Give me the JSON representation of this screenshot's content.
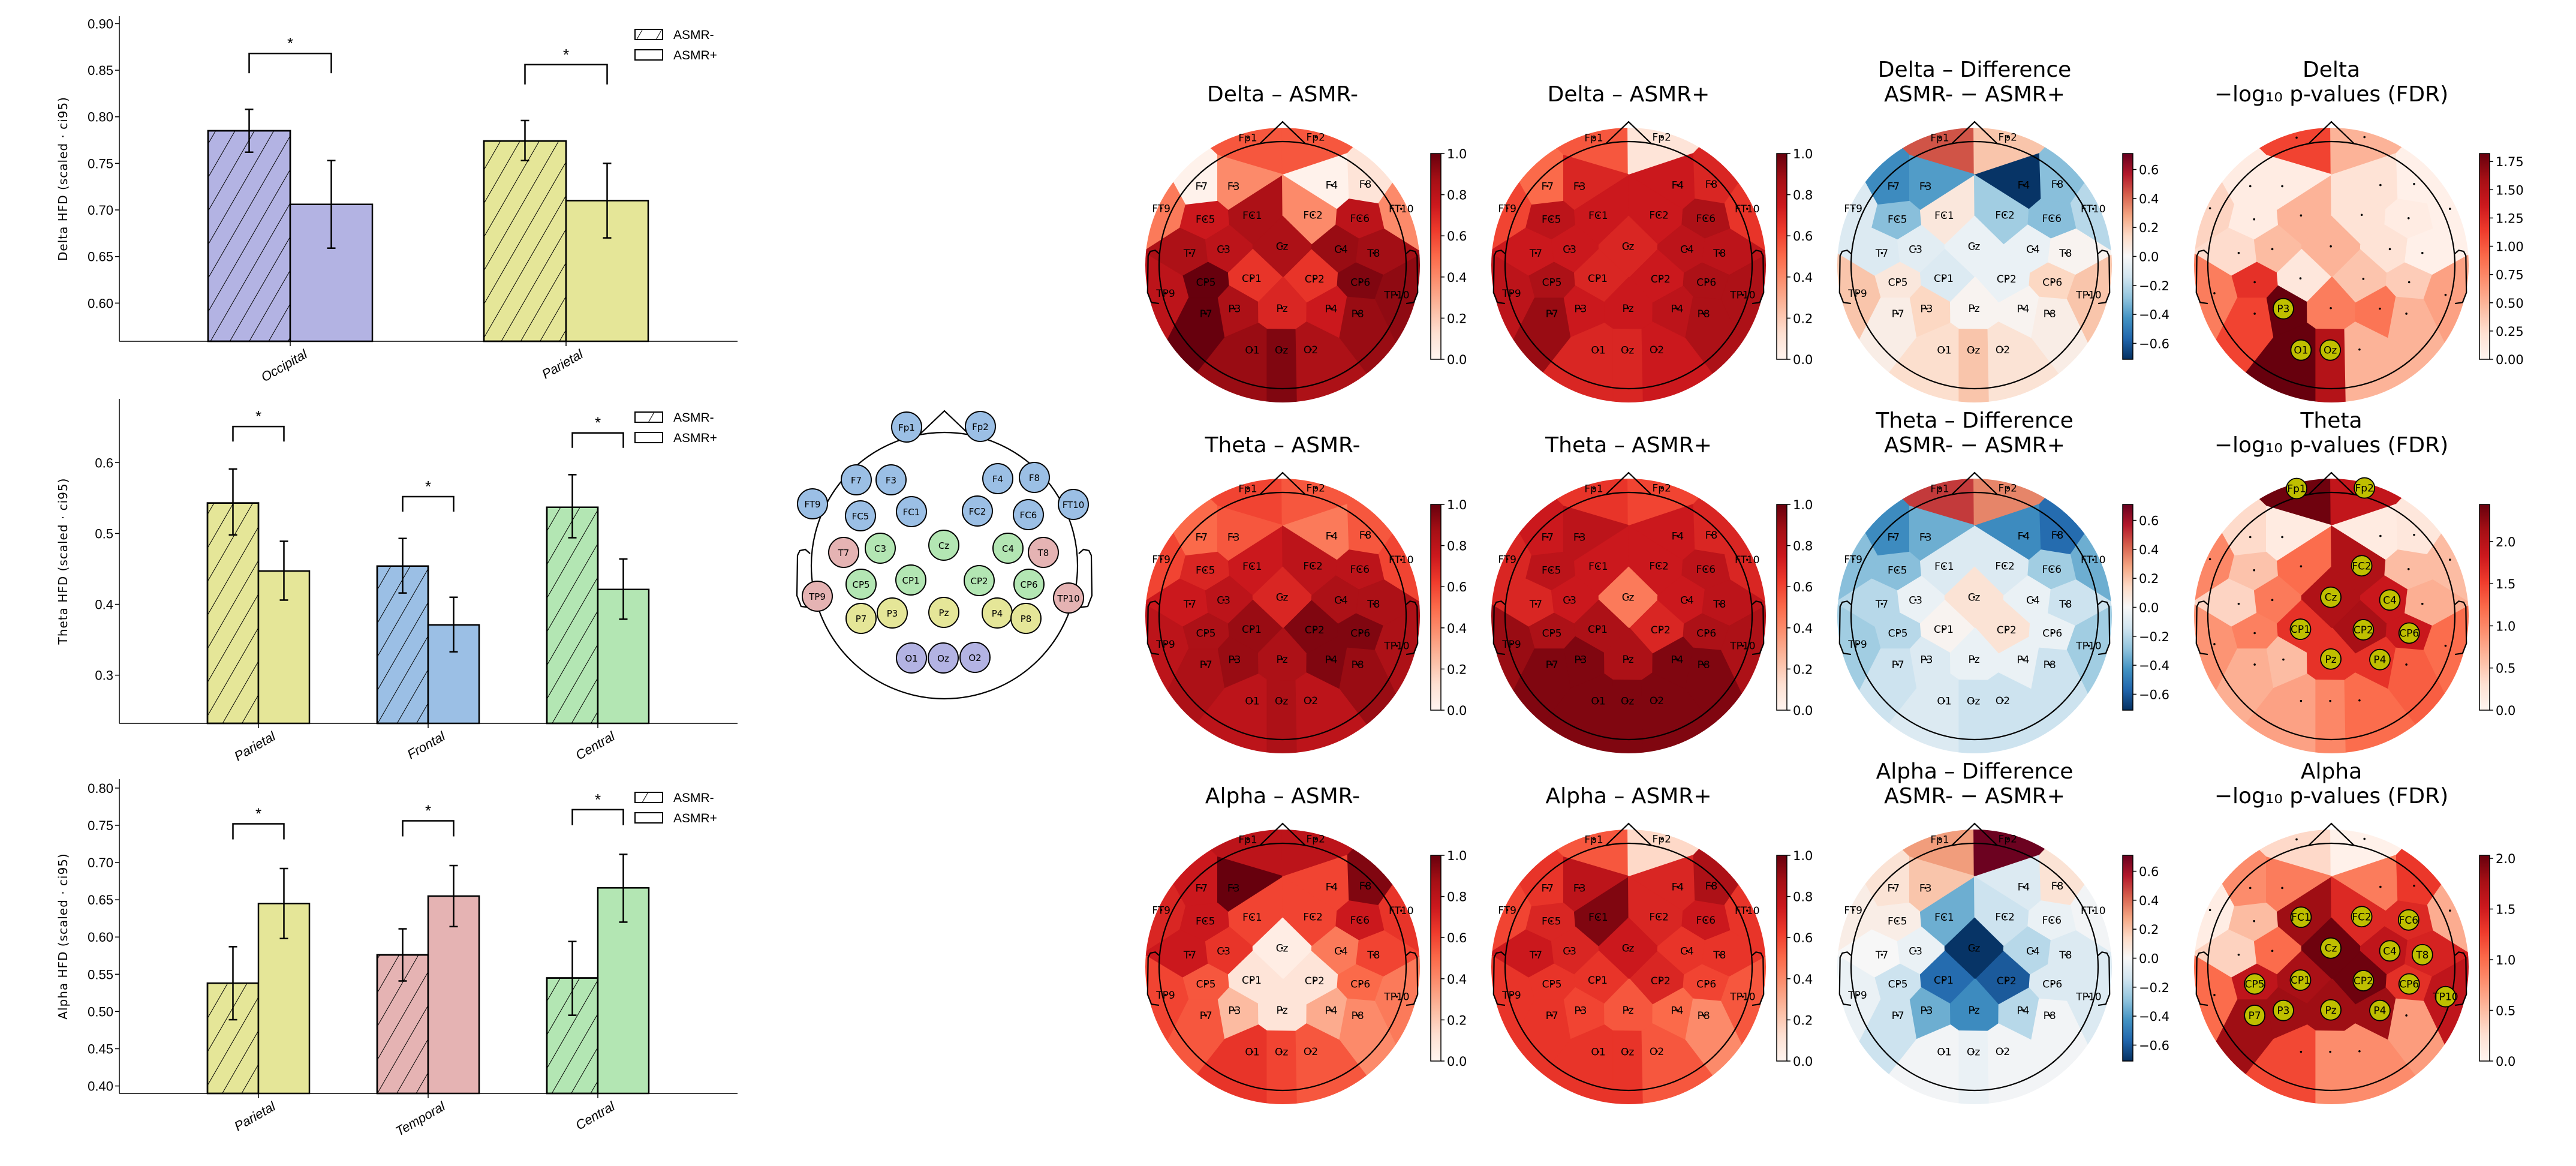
{
  "electrodes": [
    "Fp1",
    "Fp2",
    "F7",
    "F3",
    "F4",
    "F8",
    "FT9",
    "FT10",
    "FC5",
    "FC1",
    "FC2",
    "FC6",
    "T7",
    "C3",
    "Cz",
    "C4",
    "T8",
    "CP5",
    "CP1",
    "CP2",
    "CP6",
    "TP9",
    "TP10",
    "P7",
    "P3",
    "Pz",
    "P4",
    "P8",
    "O1",
    "Oz",
    "O2"
  ],
  "montage": {
    "groups": [
      {
        "region": "frontal",
        "color": "#9bbfe5",
        "electrodes": [
          "Fp1",
          "Fp2",
          "F7",
          "F3",
          "F4",
          "F8",
          "FT9",
          "FT10",
          "FC5",
          "FC1",
          "FC2",
          "FC6"
        ]
      },
      {
        "region": "central",
        "color": "#b3e6b3",
        "electrodes": [
          "C3",
          "Cz",
          "C4",
          "CP5",
          "CP1",
          "CP2",
          "CP6"
        ]
      },
      {
        "region": "temporal",
        "color": "#e5b3b3",
        "electrodes": [
          "T7",
          "T8",
          "TP9",
          "TP10"
        ]
      },
      {
        "region": "parietal",
        "color": "#e5e698",
        "electrodes": [
          "P7",
          "P3",
          "Pz",
          "P4",
          "P8"
        ]
      },
      {
        "region": "occipital",
        "color": "#b3b3e3",
        "electrodes": [
          "O1",
          "Oz",
          "O2"
        ]
      }
    ]
  },
  "chart_data": [
    {
      "type": "bar",
      "ylabel": "Delta HFD (scaled · ci95)",
      "categories": [
        "Occipital",
        "Parietal"
      ],
      "colors": [
        "#b3b3e3",
        "#e5e698"
      ],
      "series": [
        {
          "name": "ASMR-",
          "hatch": true,
          "values": [
            0.785,
            0.774
          ],
          "ci_low": [
            0.762,
            0.753
          ],
          "ci_high": [
            0.808,
            0.796
          ]
        },
        {
          "name": "ASMR+",
          "hatch": false,
          "values": [
            0.706,
            0.71
          ],
          "ci_low": [
            0.659,
            0.67
          ],
          "ci_high": [
            0.753,
            0.75
          ]
        }
      ],
      "significance": [
        {
          "category": "Occipital",
          "y": 0.868,
          "label": "*"
        },
        {
          "category": "Parietal",
          "y": 0.856,
          "label": "*"
        }
      ],
      "yticks": [
        "0.60",
        "0.65",
        "0.70",
        "0.75",
        "0.80",
        "0.85",
        "0.90"
      ],
      "ylim": [
        0.559,
        0.908
      ],
      "legend": "top-right"
    },
    {
      "type": "bar",
      "ylabel": "Theta HFD (scaled · ci95)",
      "categories": [
        "Parietal",
        "Frontal",
        "Central"
      ],
      "colors": [
        "#e5e698",
        "#9bbfe5",
        "#b3e6b3"
      ],
      "series": [
        {
          "name": "ASMR-",
          "hatch": true,
          "values": [
            0.543,
            0.454,
            0.537
          ],
          "ci_low": [
            0.498,
            0.416,
            0.494
          ],
          "ci_high": [
            0.591,
            0.493,
            0.583
          ]
        },
        {
          "name": "ASMR+",
          "hatch": false,
          "values": [
            0.447,
            0.371,
            0.421
          ],
          "ci_low": [
            0.406,
            0.333,
            0.379
          ],
          "ci_high": [
            0.489,
            0.41,
            0.464
          ]
        }
      ],
      "significance": [
        {
          "category": "Parietal",
          "y": 0.651,
          "label": "*"
        },
        {
          "category": "Frontal",
          "y": 0.552,
          "label": "*"
        },
        {
          "category": "Central",
          "y": 0.642,
          "label": "*"
        }
      ],
      "yticks": [
        "0.3",
        "0.4",
        "0.5",
        "0.6"
      ],
      "ylim": [
        0.232,
        0.69
      ],
      "legend": "top-right"
    },
    {
      "type": "bar",
      "ylabel": "Alpha HFD (scaled · ci95)",
      "categories": [
        "Parietal",
        "Temporal",
        "Central"
      ],
      "colors": [
        "#e5e698",
        "#e5b3b3",
        "#b3e6b3"
      ],
      "series": [
        {
          "name": "ASMR-",
          "hatch": true,
          "values": [
            0.538,
            0.576,
            0.545
          ],
          "ci_low": [
            0.489,
            0.541,
            0.495
          ],
          "ci_high": [
            0.587,
            0.611,
            0.594
          ]
        },
        {
          "name": "ASMR+",
          "hatch": false,
          "values": [
            0.645,
            0.655,
            0.666
          ],
          "ci_low": [
            0.598,
            0.614,
            0.62
          ],
          "ci_high": [
            0.692,
            0.696,
            0.711
          ]
        }
      ],
      "significance": [
        {
          "category": "Parietal",
          "y": 0.752,
          "label": "*"
        },
        {
          "category": "Temporal",
          "y": 0.756,
          "label": "*"
        },
        {
          "category": "Central",
          "y": 0.771,
          "label": "*"
        }
      ],
      "yticks": [
        "0.40",
        "0.45",
        "0.50",
        "0.55",
        "0.60",
        "0.65",
        "0.70",
        "0.75",
        "0.80"
      ],
      "ylim": [
        0.39,
        0.812
      ],
      "legend": "top-right"
    },
    {
      "type": "heatmap",
      "title": [
        "Delta – ASMR-"
      ],
      "cmap": "Reds",
      "vmin": 0,
      "vmax": 1,
      "show_labels": true,
      "cbar_ticks": [
        "0.0",
        "0.2",
        "0.4",
        "0.6",
        "0.8",
        "1.0"
      ],
      "values": [
        0.55,
        0.55,
        0.02,
        0.4,
        0.02,
        0.1,
        0.45,
        0.4,
        0.75,
        0.85,
        0.4,
        0.8,
        0.85,
        0.8,
        0.85,
        0.9,
        0.88,
        1.0,
        0.65,
        0.65,
        0.95,
        0.8,
        0.92,
        1.0,
        0.85,
        0.7,
        0.75,
        0.9,
        0.9,
        0.95,
        0.85
      ]
    },
    {
      "type": "heatmap",
      "title": [
        "Delta – ASMR+"
      ],
      "cmap": "Reds",
      "vmin": 0,
      "vmax": 1,
      "show_labels": true,
      "cbar_ticks": [
        "0.0",
        "0.2",
        "0.4",
        "0.6",
        "0.8",
        "1.0"
      ],
      "values": [
        0.55,
        0.1,
        0.5,
        0.7,
        0.75,
        0.7,
        0.6,
        0.65,
        0.8,
        0.75,
        0.75,
        0.85,
        0.75,
        0.75,
        0.7,
        0.8,
        0.8,
        0.85,
        0.7,
        0.75,
        0.85,
        0.8,
        0.85,
        0.9,
        0.75,
        0.75,
        0.8,
        0.85,
        0.7,
        0.7,
        0.75
      ]
    },
    {
      "type": "heatmap",
      "title": [
        "Delta – Difference",
        "ASMR- − ASMR+"
      ],
      "cmap": "RdBu_r",
      "vmin": -0.71,
      "vmax": 0.71,
      "show_labels": true,
      "cbar_ticks": [
        "−0.6",
        "−0.4",
        "−0.2",
        "0.0",
        "0.2",
        "0.4",
        "0.6"
      ],
      "values": [
        0.45,
        0.2,
        -0.45,
        -0.4,
        -0.7,
        -0.3,
        -0.1,
        -0.2,
        -0.3,
        0.08,
        -0.25,
        -0.3,
        -0.1,
        -0.08,
        -0.05,
        -0.05,
        0.02,
        0.08,
        -0.1,
        -0.05,
        0.15,
        0.2,
        0.2,
        0.05,
        0.15,
        0.02,
        0.02,
        0.05,
        0.12,
        0.2,
        0.1
      ]
    },
    {
      "type": "heatmap",
      "title": [
        "Delta",
        "−log₁₀ p-values (FDR)"
      ],
      "cmap": "Reds",
      "vmin": 0,
      "vmax": 1.82,
      "show_labels": false,
      "significant": [
        "P3",
        "O1",
        "Oz"
      ],
      "cbar_ticks": [
        "0.00",
        "0.25",
        "0.50",
        "0.75",
        "1.00",
        "1.25",
        "1.50",
        "1.75"
      ],
      "values": [
        1.1,
        0.5,
        0.1,
        0.1,
        0.2,
        0.05,
        0.3,
        0.05,
        0.1,
        0.5,
        0.2,
        0.1,
        0.25,
        0.45,
        0.5,
        0.2,
        0.05,
        1.2,
        0.15,
        0.4,
        0.35,
        0.8,
        0.6,
        1.1,
        1.82,
        0.8,
        0.85,
        0.5,
        1.82,
        1.5,
        0.5
      ]
    },
    {
      "type": "heatmap",
      "title": [
        "Theta – ASMR-"
      ],
      "cmap": "Reds",
      "vmin": 0,
      "vmax": 1,
      "show_labels": true,
      "cbar_ticks": [
        "0.0",
        "0.2",
        "0.4",
        "0.6",
        "0.8",
        "1.0"
      ],
      "values": [
        0.6,
        0.55,
        0.5,
        0.55,
        0.45,
        0.55,
        0.6,
        0.6,
        0.7,
        0.75,
        0.8,
        0.8,
        0.75,
        0.8,
        0.7,
        0.85,
        0.85,
        0.85,
        0.9,
        0.95,
        0.95,
        0.8,
        0.85,
        0.85,
        0.9,
        0.85,
        0.95,
        0.9,
        0.8,
        0.85,
        0.8
      ]
    },
    {
      "type": "heatmap",
      "title": [
        "Theta – ASMR+"
      ],
      "cmap": "Reds",
      "vmin": 0,
      "vmax": 1,
      "show_labels": true,
      "cbar_ticks": [
        "0.0",
        "0.2",
        "0.4",
        "0.6",
        "0.8",
        "1.0"
      ],
      "values": [
        0.65,
        0.6,
        0.75,
        0.8,
        0.75,
        0.7,
        0.7,
        0.7,
        0.8,
        0.75,
        0.75,
        0.8,
        0.7,
        0.75,
        0.45,
        0.75,
        0.8,
        0.85,
        0.85,
        0.7,
        0.85,
        0.9,
        0.85,
        0.95,
        0.95,
        0.85,
        0.95,
        0.95,
        0.95,
        0.95,
        0.95
      ]
    },
    {
      "type": "heatmap",
      "title": [
        "Theta – Difference",
        "ASMR- − ASMR+"
      ],
      "cmap": "RdBu_r",
      "vmin": -0.71,
      "vmax": 0.71,
      "show_labels": true,
      "cbar_ticks": [
        "−0.6",
        "−0.4",
        "−0.2",
        "0.0",
        "0.2",
        "0.4",
        "0.6"
      ],
      "values": [
        0.5,
        0.35,
        -0.45,
        -0.35,
        -0.45,
        -0.55,
        -0.3,
        -0.35,
        -0.3,
        -0.1,
        -0.1,
        -0.25,
        -0.2,
        -0.05,
        0.1,
        -0.05,
        -0.15,
        -0.2,
        0.02,
        0.1,
        -0.05,
        -0.25,
        -0.25,
        -0.15,
        -0.1,
        -0.05,
        -0.05,
        -0.15,
        -0.1,
        -0.15,
        -0.15
      ]
    },
    {
      "type": "heatmap",
      "title": [
        "Theta",
        "−log₁₀ p-values (FDR)"
      ],
      "cmap": "Reds",
      "vmin": 0,
      "vmax": 2.44,
      "show_labels": false,
      "significant": [
        "Fp1",
        "Fp2",
        "FC2",
        "Cz",
        "C4",
        "CP1",
        "CP2",
        "CP6",
        "Pz",
        "P4"
      ],
      "cbar_ticks": [
        "0.0",
        "0.5",
        "1.0",
        "1.5",
        "2.0"
      ],
      "values": [
        2.4,
        1.9,
        0.35,
        0.15,
        0.15,
        0.2,
        1.0,
        0.6,
        0.55,
        1.2,
        2.05,
        0.6,
        0.4,
        1.1,
        2.05,
        1.85,
        0.7,
        1.05,
        1.6,
        2.1,
        1.85,
        0.9,
        1.2,
        0.7,
        0.6,
        1.6,
        1.6,
        1.3,
        0.8,
        1.0,
        1.2
      ]
    },
    {
      "type": "heatmap",
      "title": [
        "Alpha – ASMR-"
      ],
      "cmap": "Reds",
      "vmin": 0,
      "vmax": 1,
      "show_labels": true,
      "cbar_ticks": [
        "0.0",
        "0.2",
        "0.4",
        "0.6",
        "0.8",
        "1.0"
      ],
      "values": [
        0.8,
        0.8,
        0.75,
        1.0,
        0.6,
        0.95,
        0.7,
        0.65,
        0.75,
        0.6,
        0.6,
        0.75,
        0.75,
        0.65,
        0.05,
        0.45,
        0.6,
        0.55,
        0.1,
        0.1,
        0.5,
        0.6,
        0.45,
        0.55,
        0.25,
        0.1,
        0.3,
        0.4,
        0.65,
        0.6,
        0.55
      ]
    },
    {
      "type": "heatmap",
      "title": [
        "Alpha – ASMR+"
      ],
      "cmap": "Reds",
      "vmin": 0,
      "vmax": 1,
      "show_labels": true,
      "cbar_ticks": [
        "0.0",
        "0.2",
        "0.4",
        "0.6",
        "0.8",
        "1.0"
      ],
      "values": [
        0.55,
        0.15,
        0.65,
        0.8,
        0.7,
        0.85,
        0.6,
        0.65,
        0.7,
        0.95,
        0.7,
        0.75,
        0.75,
        0.7,
        0.75,
        0.65,
        0.65,
        0.65,
        0.65,
        0.7,
        0.6,
        0.65,
        0.55,
        0.65,
        0.6,
        0.55,
        0.5,
        0.4,
        0.65,
        0.65,
        0.55
      ]
    },
    {
      "type": "heatmap",
      "title": [
        "Alpha – Difference",
        "ASMR- − ASMR+"
      ],
      "cmap": "RdBu_r",
      "vmin": -0.71,
      "vmax": 0.71,
      "show_labels": true,
      "cbar_ticks": [
        "−0.6",
        "−0.4",
        "−0.2",
        "0.0",
        "0.2",
        "0.4",
        "0.6"
      ],
      "values": [
        0.3,
        0.7,
        0.1,
        0.2,
        -0.1,
        0.1,
        0.05,
        -0.02,
        0.05,
        -0.35,
        -0.15,
        -0.05,
        0.0,
        -0.05,
        -0.7,
        -0.2,
        -0.1,
        -0.15,
        -0.55,
        -0.6,
        -0.1,
        -0.05,
        -0.1,
        -0.15,
        -0.35,
        -0.45,
        -0.2,
        -0.02,
        -0.02,
        -0.05,
        -0.02
      ]
    },
    {
      "type": "heatmap",
      "title": [
        "Alpha",
        "−log₁₀ p-values (FDR)"
      ],
      "cmap": "Reds",
      "vmin": 0,
      "vmax": 2.03,
      "show_labels": false,
      "significant": [
        "FC1",
        "FC2",
        "FC6",
        "Cz",
        "C4",
        "T8",
        "CP5",
        "CP1",
        "CP2",
        "CP6",
        "TP10",
        "P7",
        "P3",
        "Pz",
        "P4"
      ],
      "cbar_ticks": [
        "0.0",
        "0.5",
        "1.0",
        "1.5",
        "2.0"
      ],
      "values": [
        0.3,
        0.05,
        0.8,
        0.9,
        0.9,
        1.3,
        0.1,
        0.6,
        0.5,
        1.8,
        1.4,
        1.4,
        0.35,
        1.0,
        2.0,
        1.6,
        1.45,
        1.6,
        1.75,
        2.0,
        1.35,
        1.0,
        1.6,
        1.8,
        1.8,
        1.8,
        1.8,
        0.7,
        1.2,
        0.8,
        0.8
      ]
    }
  ],
  "colormaps": {
    "Reds": [
      "#fff5f0",
      "#fee0d2",
      "#fcbba1",
      "#fc9272",
      "#fb6a4a",
      "#ef3b2c",
      "#cb181d",
      "#a50f15",
      "#67000d"
    ],
    "RdBu_r": [
      "#053061",
      "#2166ac",
      "#4393c3",
      "#92c5de",
      "#d1e5f0",
      "#f7f7f7",
      "#fddbc7",
      "#f4a582",
      "#d6604d",
      "#b2182b",
      "#67001f"
    ],
    "significant_marker": "#bfbf00"
  }
}
